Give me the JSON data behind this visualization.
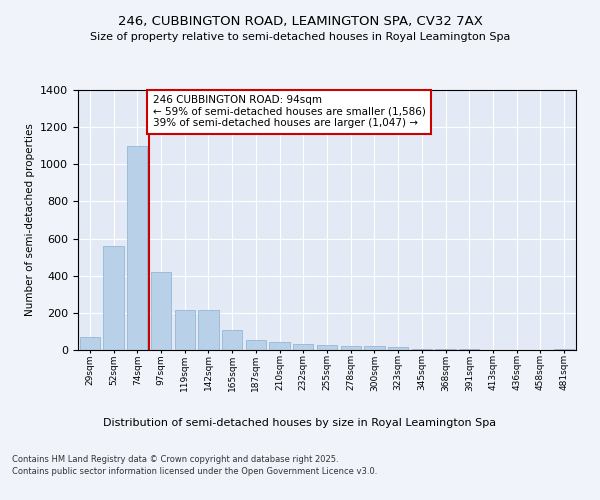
{
  "title1": "246, CUBBINGTON ROAD, LEAMINGTON SPA, CV32 7AX",
  "title2": "Size of property relative to semi-detached houses in Royal Leamington Spa",
  "xlabel": "Distribution of semi-detached houses by size in Royal Leamington Spa",
  "ylabel": "Number of semi-detached properties",
  "footer": "Contains HM Land Registry data © Crown copyright and database right 2025.\nContains public sector information licensed under the Open Government Licence v3.0.",
  "categories": [
    "29sqm",
    "52sqm",
    "74sqm",
    "97sqm",
    "119sqm",
    "142sqm",
    "165sqm",
    "187sqm",
    "210sqm",
    "232sqm",
    "255sqm",
    "278sqm",
    "300sqm",
    "323sqm",
    "345sqm",
    "368sqm",
    "391sqm",
    "413sqm",
    "436sqm",
    "458sqm",
    "481sqm"
  ],
  "values": [
    70,
    560,
    1100,
    420,
    215,
    215,
    110,
    55,
    45,
    30,
    25,
    20,
    20,
    15,
    8,
    8,
    3,
    2,
    2,
    2,
    5
  ],
  "bar_color": "#b8d0e8",
  "bar_edge_color": "#8ab0d0",
  "vline_color": "#cc0000",
  "vline_index": 2.5,
  "annotation_title": "246 CUBBINGTON ROAD: 94sqm",
  "annotation_line1": "← 59% of semi-detached houses are smaller (1,586)",
  "annotation_line2": "39% of semi-detached houses are larger (1,047) →",
  "annotation_box_color": "#ffffff",
  "annotation_box_edge": "#cc0000",
  "ylim": [
    0,
    1400
  ],
  "yticks": [
    0,
    200,
    400,
    600,
    800,
    1000,
    1200,
    1400
  ],
  "background_color": "#f0f4fa",
  "plot_bg_color": "#e4eaf5"
}
